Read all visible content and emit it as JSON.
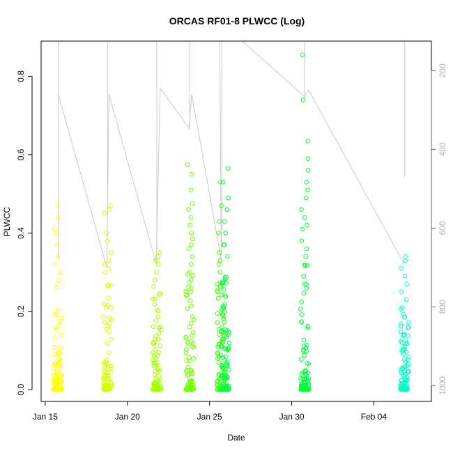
{
  "chart_data": {
    "type": "scatter",
    "title": "ORCAS RF01-8 PLWCC (Log)",
    "xlabel": "Date",
    "ylabel": "PLWCC",
    "xlim": [
      "2016-01-14T18:00",
      "2016-02-07T12:00"
    ],
    "ylim": [
      -0.03,
      0.89
    ],
    "y_ticks": [
      "0.0",
      "0.2",
      "0.4",
      "0.6",
      "0.8"
    ],
    "y_tick_values": [
      0,
      0.2,
      0.4,
      0.6,
      0.8
    ],
    "x_ticks": [
      "Jan 15",
      "Jan 20",
      "Jan 25",
      "Jan 30",
      "Feb 04"
    ],
    "x_tick_values": [
      "2016-01-15",
      "2016-01-20",
      "2016-01-25",
      "2016-01-30",
      "2016-02-04"
    ],
    "y2_ticks": [
      "200",
      "400",
      "600",
      "800",
      "1000"
    ],
    "y2_tick_values": [
      200,
      400,
      600,
      800,
      1000
    ],
    "y2lim": [
      1040,
      125
    ],
    "grid": false,
    "point_colors": [
      "#ffff00",
      "#d4ff00",
      "#a8ff00",
      "#70ff00",
      "#3dff00",
      "#00ff3c",
      "#00ffc8"
    ],
    "pressure_color": "#c8c8c8",
    "series": [
      {
        "date": "2016-01-15T18:00",
        "color": "#ffff00",
        "tall_values": [
          0.47,
          0.44,
          0.41,
          0.4,
          0.37,
          0.34,
          0.32,
          0.3,
          0.28,
          0.26
        ],
        "dense_max": 0.22
      },
      {
        "date": "2016-01-18T19:00",
        "color": "#d4ff00",
        "tall_values": [
          0.47,
          0.46,
          0.45,
          0.4,
          0.38,
          0.35,
          0.33,
          0.32,
          0.31,
          0.3
        ],
        "dense_max": 0.3
      },
      {
        "date": "2016-01-21T19:00",
        "color": "#a8ff00",
        "tall_values": [
          0.35,
          0.34,
          0.33,
          0.32,
          0.3,
          0.28
        ],
        "dense_max": 0.27
      },
      {
        "date": "2016-01-23T19:00",
        "color": "#70ff00",
        "tall_values": [
          0.575,
          0.55,
          0.51,
          0.475,
          0.46,
          0.44,
          0.42,
          0.4,
          0.385,
          0.37,
          0.36,
          0.34,
          0.32
        ],
        "dense_max": 0.31
      },
      {
        "date": "2016-01-25T17:00",
        "color": "#3dff00",
        "tall_values": [
          0.53,
          0.47,
          0.43,
          0.4,
          0.37,
          0.35,
          0.33,
          0.32,
          0.3
        ],
        "dense_max": 0.28
      },
      {
        "date": "2016-01-25T23:00",
        "color": "#00ff3c",
        "tall_values": [
          0.565,
          0.53,
          0.49,
          0.46,
          0.43,
          0.4,
          0.37,
          0.34
        ],
        "dense_max": 0.3
      },
      {
        "date": "2016-01-30T19:00",
        "color": "#00ff3c",
        "tall_values": [
          0.855,
          0.74,
          0.635,
          0.59,
          0.56,
          0.53,
          0.51,
          0.49,
          0.46,
          0.44,
          0.42,
          0.41,
          0.38,
          0.36,
          0.34
        ],
        "dense_max": 0.33
      },
      {
        "date": "2016-02-05T21:00",
        "color": "#00ffc8",
        "tall_values": [
          0.34,
          0.33,
          0.31,
          0.29,
          0.27,
          0.25,
          0.23
        ],
        "dense_max": 0.21
      }
    ],
    "pressure_trace": [
      [
        "2016-01-15T19:00",
        260
      ],
      [
        "2016-01-18T18:00",
        700
      ],
      [
        "2016-01-18T21:00",
        260
      ],
      [
        "2016-01-21T18:00",
        690
      ],
      [
        "2016-01-22T00:00",
        245
      ],
      [
        "2016-01-23T18:00",
        345
      ],
      [
        "2016-01-23T22:00",
        260
      ],
      [
        "2016-01-25T17:00",
        680
      ],
      [
        "2016-01-25T15:00",
        125
      ],
      [
        "2016-01-26T00:00",
        125
      ],
      [
        "2016-01-27T00:00",
        125
      ],
      [
        "2016-01-30T18:00",
        265
      ],
      [
        "2016-01-31T01:00",
        250
      ],
      [
        "2016-02-05T20:00",
        690
      ]
    ],
    "pressure_spikes": [
      [
        "2016-01-15T19:00",
        125,
        680
      ],
      [
        "2016-01-18T19:00",
        125,
        500
      ],
      [
        "2016-01-21T19:00",
        125,
        650
      ],
      [
        "2016-01-23T19:00",
        125,
        350
      ],
      [
        "2016-01-25T18:00",
        125,
        650
      ],
      [
        "2016-01-30T19:00",
        125,
        270
      ],
      [
        "2016-02-05T21:00",
        125,
        470
      ]
    ]
  }
}
